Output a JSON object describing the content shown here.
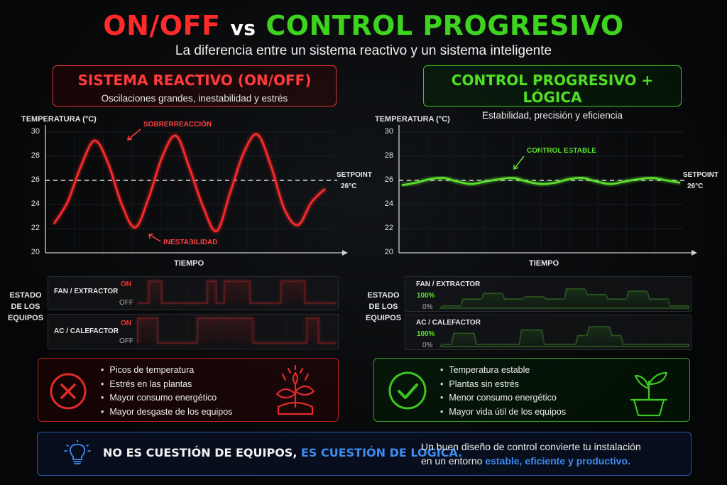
{
  "title": {
    "part1": "ON/OFF",
    "vs": "vs",
    "part2": "CONTROL PROGRESIVO"
  },
  "subtitle": "La diferencia entre un sistema reactivo y un sistema inteligente",
  "left": {
    "header_title": "SISTEMA REACTIVO (ON/OFF)",
    "header_sub": "Oscilaciones grandes, inestabilidad y estrés",
    "y_axis_label": "TEMPERATURA (°C)",
    "x_axis_label": "TIEMPO",
    "annotation_top": "SOBRERREACCIÓN",
    "annotation_bottom": "INESTABILIDAD",
    "setpoint_label": "SETPOINT",
    "setpoint_value": "26°C",
    "equipment_title": [
      "ESTADO",
      "DE LOS",
      "EQUIPOS"
    ],
    "fan_label": "FAN / EXTRACTOR",
    "ac_label": "AC / CALEFACTOR",
    "on_label": "ON",
    "off_label": "OFF",
    "bullets": [
      "Picos de temperatura",
      "Estrés en las plantas",
      "Mayor consumo energético",
      "Mayor desgaste de los equipos"
    ]
  },
  "right": {
    "header_title": "CONTROL PROGRESIVO + LÓGICA",
    "header_sub": "Estabilidad, precisión y eficiencia",
    "y_axis_label": "TEMPERATURA (°C)",
    "x_axis_label": "TIEMPO",
    "annotation": "CONTROL ESTABLE",
    "setpoint_label": "SETPOINT",
    "setpoint_value": "26°C",
    "equipment_title": [
      "ESTADO",
      "DE LOS",
      "EQUIPOS"
    ],
    "fan_label": "FAN / EXTRACTOR",
    "ac_label": "AC / CALEFACTOR",
    "max_label": "100%",
    "min_label": "0%",
    "bullets": [
      "Temperatura estable",
      "Plantas sin estrés",
      "Menor consumo energético",
      "Mayor vida útil de los equipos"
    ]
  },
  "footer": {
    "main_plain": "NO ES CUESTIÓN DE EQUIPOS,",
    "main_highlight": "ES CUESTIÓN DE LÓGICA.",
    "desc_line1": "Un buen diseño de control convierte tu instalación",
    "desc_line2_plain": "en un entorno",
    "desc_line2_highlight": "estable, eficiente y productivo."
  },
  "chart_data": [
    {
      "type": "line",
      "ylabel": "TEMPERATURA (°C)",
      "xlabel": "TIEMPO",
      "ylim": [
        20,
        30
      ],
      "yticks": [
        20,
        22,
        24,
        26,
        28,
        30
      ],
      "setpoint": 26,
      "series": [
        {
          "values": [
            22.4,
            24.2,
            27.2,
            29.3,
            27.4,
            24.0,
            22.1,
            24.6,
            28.0,
            29.7,
            27.0,
            23.8,
            21.8,
            25.0,
            28.3,
            29.8,
            27.2,
            23.6,
            22.3,
            24.2,
            25.3
          ]
        }
      ],
      "color": "#ff2a2a"
    },
    {
      "type": "line",
      "ylabel": "TEMPERATURA (°C)",
      "xlabel": "TIEMPO",
      "ylim": [
        20,
        30
      ],
      "yticks": [
        20,
        22,
        24,
        26,
        28,
        30
      ],
      "setpoint": 26,
      "series": [
        {
          "values": [
            25.6,
            25.8,
            26.1,
            26.2,
            25.9,
            25.7,
            25.9,
            26.1,
            26.2,
            25.9,
            25.7,
            25.8,
            26.1,
            26.2,
            25.9,
            25.7,
            25.9,
            26.1,
            26.2,
            26.0,
            25.8
          ]
        }
      ],
      "color": "#5de22e"
    }
  ],
  "equipment_data": {
    "left_fan_on_segments": [
      [
        0.055,
        0.12
      ],
      [
        0.35,
        0.395
      ],
      [
        0.435,
        0.565
      ],
      [
        0.72,
        0.84
      ]
    ],
    "left_ac_on_segments": [
      [
        0.0,
        0.1
      ],
      [
        0.3,
        0.58
      ],
      [
        0.85,
        0.91
      ]
    ],
    "right_fan_levels": [
      0.1,
      0.1,
      0.4,
      0.4,
      0.65,
      0.65,
      0.4,
      0.4,
      0.5,
      0.5,
      0.4,
      0.4,
      0.85,
      0.85,
      0.6,
      0.6,
      0.4,
      0.4,
      0.75,
      0.75,
      0.4,
      0.4,
      0.1,
      0.1
    ],
    "right_ac_levels": [
      0.1,
      0.6,
      0.6,
      0.1,
      0.1,
      0.1,
      0.1,
      0.75,
      0.75,
      0.1,
      0.1,
      0.1,
      0.5,
      0.9,
      0.9,
      0.5,
      0.1,
      0.1,
      0.1,
      0.1,
      0.1,
      0.1
    ]
  }
}
